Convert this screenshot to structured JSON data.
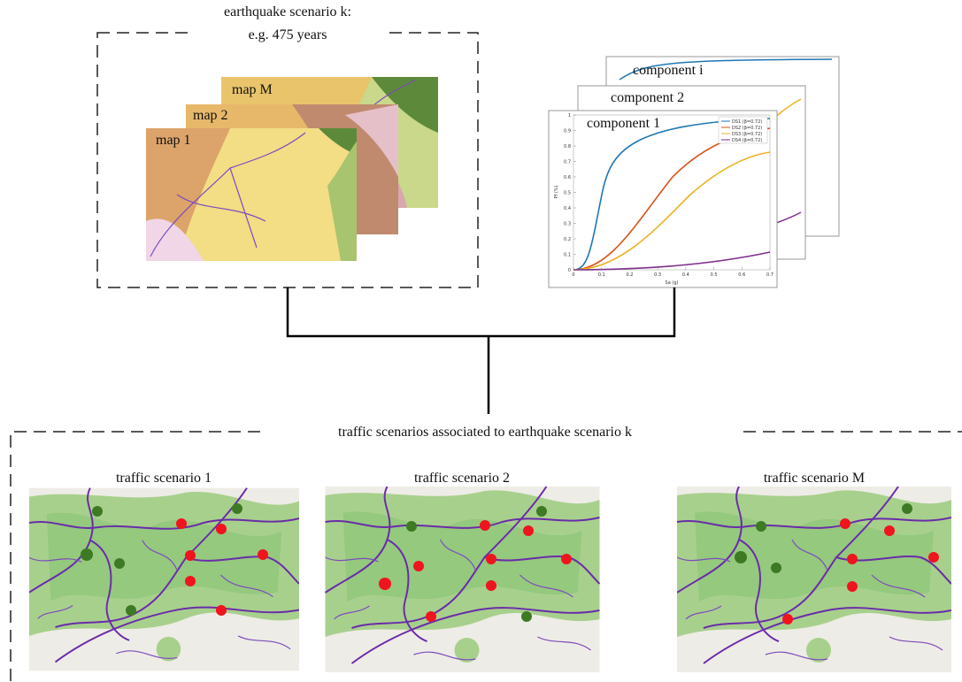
{
  "earthquake_box": {
    "title_line1": "earthquake scenario k:",
    "title_line2": "e.g. 475 years",
    "maps": [
      "map M",
      "map 2",
      "map 1"
    ]
  },
  "fragility_box": {
    "components": [
      "component i",
      "component 2",
      "component 1"
    ],
    "legend": [
      "DS1 (β=0.72)",
      "DS2 (β=0.72)",
      "DS3 (β=0.72)",
      "DS4 (β=0.72)"
    ],
    "x_axis_label": "Sa (g)",
    "y_axis_label": "Pf (%)",
    "xticks": [
      0,
      0.1,
      0.2,
      0.3,
      0.4,
      0.5,
      0.6,
      0.7
    ],
    "yticks": [
      0,
      0.1,
      0.2,
      0.3,
      0.4,
      0.5,
      0.6,
      0.7,
      0.8,
      0.9,
      1
    ]
  },
  "traffic_box": {
    "title": "traffic scenarios associated to earthquake scenario k",
    "scenarios": [
      "traffic scenario 1",
      "traffic scenario 2",
      "traffic scenario M"
    ]
  }
}
